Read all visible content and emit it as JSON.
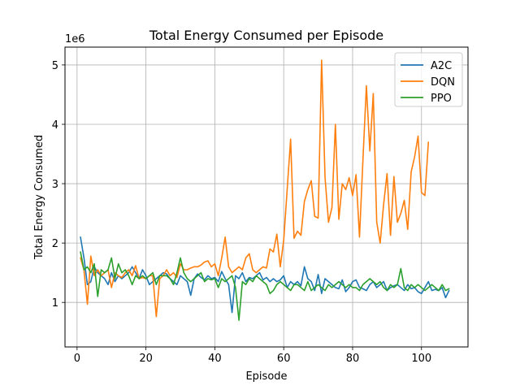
{
  "chart_data": {
    "type": "line",
    "title": "Total Energy Consumed per Episode",
    "xlabel": "Episode",
    "ylabel": "Total Energy Consumed",
    "y_offset_label": "1e6",
    "xlim": [
      -3.5,
      113.5
    ],
    "ylim": [
      250000,
      5300000
    ],
    "xticks": [
      0,
      20,
      40,
      60,
      80,
      100
    ],
    "yticks": [
      1000000,
      2000000,
      3000000,
      4000000,
      5000000
    ],
    "ytick_labels": [
      "1",
      "2",
      "3",
      "4",
      "5"
    ],
    "grid": true,
    "legend_position": "top-right",
    "series": [
      {
        "name": "A2C",
        "color": "#1f77b4",
        "x": [
          1,
          2,
          3,
          4,
          5,
          6,
          7,
          8,
          9,
          10,
          11,
          12,
          13,
          14,
          15,
          16,
          17,
          18,
          19,
          20,
          21,
          22,
          23,
          24,
          25,
          26,
          27,
          28,
          29,
          30,
          31,
          32,
          33,
          34,
          35,
          36,
          37,
          38,
          39,
          40,
          41,
          42,
          43,
          44,
          45,
          46,
          47,
          48,
          49,
          50,
          51,
          52,
          53,
          54,
          55,
          56,
          57,
          58,
          59,
          60,
          61,
          62,
          63,
          64,
          65,
          66,
          67,
          68,
          69,
          70,
          71,
          72,
          73,
          74,
          75,
          76,
          77,
          78,
          79,
          80,
          81,
          82,
          83,
          84,
          85,
          86,
          87,
          88,
          89,
          90,
          91,
          92,
          93,
          94,
          95,
          96,
          97,
          98,
          99,
          100,
          101,
          102,
          103,
          104,
          105,
          106,
          107,
          108
        ],
        "values": [
          2100000,
          1750000,
          1300000,
          1350000,
          1600000,
          1500000,
          1450000,
          1400000,
          1300000,
          1500000,
          1350000,
          1450000,
          1400000,
          1450000,
          1500000,
          1600000,
          1500000,
          1400000,
          1550000,
          1450000,
          1300000,
          1350000,
          1400000,
          1450000,
          1500000,
          1480000,
          1400000,
          1350000,
          1300000,
          1450000,
          1400000,
          1350000,
          1120000,
          1400000,
          1480000,
          1420000,
          1380000,
          1450000,
          1400000,
          1420000,
          1350000,
          1520000,
          1400000,
          1300000,
          830000,
          1450000,
          1400000,
          1500000,
          1350000,
          1420000,
          1400000,
          1450000,
          1500000,
          1380000,
          1420000,
          1350000,
          1400000,
          1350000,
          1380000,
          1450000,
          1250000,
          1350000,
          1300000,
          1350000,
          1280000,
          1600000,
          1400000,
          1350000,
          1200000,
          1470000,
          1150000,
          1400000,
          1350000,
          1300000,
          1250000,
          1230000,
          1380000,
          1180000,
          1250000,
          1350000,
          1380000,
          1250000,
          1230000,
          1200000,
          1300000,
          1350000,
          1250000,
          1300000,
          1350000,
          1200000,
          1250000,
          1280000,
          1300000,
          1250000,
          1200000,
          1300000,
          1230000,
          1250000,
          1180000,
          1150000,
          1250000,
          1350000,
          1200000,
          1220000,
          1200000,
          1250000,
          1080000,
          1200000
        ]
      },
      {
        "name": "DQN",
        "color": "#ff7f0e",
        "x": [
          1,
          2,
          3,
          4,
          5,
          6,
          7,
          8,
          9,
          10,
          11,
          12,
          13,
          14,
          15,
          16,
          17,
          18,
          19,
          20,
          21,
          22,
          23,
          24,
          25,
          26,
          27,
          28,
          29,
          30,
          31,
          32,
          33,
          34,
          35,
          36,
          37,
          38,
          39,
          40,
          41,
          42,
          43,
          44,
          45,
          46,
          47,
          48,
          49,
          50,
          51,
          52,
          53,
          54,
          55,
          56,
          57,
          58,
          59,
          60,
          61,
          62,
          63,
          64,
          65,
          66,
          67,
          68,
          69,
          70,
          71,
          72,
          73,
          74,
          75,
          76,
          77,
          78,
          79,
          80,
          81,
          82,
          83,
          84,
          85,
          86,
          87,
          88,
          89,
          90,
          91,
          92,
          93,
          94,
          95,
          96,
          97,
          98,
          99,
          100,
          101,
          102
        ],
        "values": [
          1750000,
          1550000,
          970000,
          1780000,
          1450000,
          1550000,
          1450000,
          1500000,
          1550000,
          1250000,
          1500000,
          1450000,
          1420000,
          1500000,
          1550000,
          1450000,
          1620000,
          1400000,
          1420000,
          1400000,
          1450000,
          1450000,
          760000,
          1400000,
          1450000,
          1550000,
          1450000,
          1500000,
          1420000,
          1650000,
          1550000,
          1550000,
          1580000,
          1600000,
          1600000,
          1630000,
          1680000,
          1700000,
          1600000,
          1650000,
          1450000,
          1750000,
          2100000,
          1600000,
          1500000,
          1550000,
          1600000,
          1550000,
          1750000,
          1820000,
          1550000,
          1500000,
          1550000,
          1600000,
          1580000,
          1900000,
          1850000,
          2150000,
          1600000,
          2050000,
          2900000,
          3750000,
          2080000,
          2200000,
          2130000,
          2700000,
          2900000,
          3050000,
          2450000,
          2420000,
          5080000,
          3100000,
          2350000,
          2600000,
          4000000,
          2400000,
          3000000,
          2900000,
          3100000,
          2800000,
          3150000,
          2100000,
          3400000,
          4650000,
          3550000,
          4520000,
          2350000,
          2000000,
          2650000,
          3170000,
          2130000,
          3120000,
          2350000,
          2500000,
          2720000,
          2230000,
          3200000,
          3450000,
          3800000,
          2850000,
          2800000,
          3700000
        ]
      },
      {
        "name": "PPO",
        "color": "#2ca02c",
        "x": [
          1,
          2,
          3,
          4,
          5,
          6,
          7,
          8,
          9,
          10,
          11,
          12,
          13,
          14,
          15,
          16,
          17,
          18,
          19,
          20,
          21,
          22,
          23,
          24,
          25,
          26,
          27,
          28,
          29,
          30,
          31,
          32,
          33,
          34,
          35,
          36,
          37,
          38,
          39,
          40,
          41,
          42,
          43,
          44,
          45,
          46,
          47,
          48,
          49,
          50,
          51,
          52,
          53,
          54,
          55,
          56,
          57,
          58,
          59,
          60,
          61,
          62,
          63,
          64,
          65,
          66,
          67,
          68,
          69,
          70,
          71,
          72,
          73,
          74,
          75,
          76,
          77,
          78,
          79,
          80,
          81,
          82,
          83,
          84,
          85,
          86,
          87,
          88,
          89,
          90,
          91,
          92,
          93,
          94,
          95,
          96,
          97,
          98,
          99,
          100,
          101,
          102,
          103,
          104,
          105,
          106,
          107,
          108
        ],
        "values": [
          1850000,
          1550000,
          1600000,
          1500000,
          1650000,
          1100000,
          1550000,
          1500000,
          1550000,
          1750000,
          1400000,
          1650000,
          1500000,
          1550000,
          1450000,
          1300000,
          1450000,
          1400000,
          1450000,
          1400000,
          1450000,
          1500000,
          1300000,
          1450000,
          1450000,
          1450000,
          1400000,
          1300000,
          1500000,
          1750000,
          1500000,
          1400000,
          1350000,
          1400000,
          1450000,
          1500000,
          1350000,
          1400000,
          1380000,
          1400000,
          1250000,
          1400000,
          1350000,
          1400000,
          1450000,
          1250000,
          700000,
          1350000,
          1300000,
          1400000,
          1350000,
          1450000,
          1400000,
          1350000,
          1300000,
          1150000,
          1200000,
          1300000,
          1350000,
          1300000,
          1250000,
          1200000,
          1300000,
          1300000,
          1250000,
          1200000,
          1350000,
          1200000,
          1250000,
          1300000,
          1250000,
          1200000,
          1300000,
          1250000,
          1300000,
          1350000,
          1300000,
          1250000,
          1300000,
          1250000,
          1250000,
          1200000,
          1300000,
          1350000,
          1400000,
          1350000,
          1300000,
          1350000,
          1250000,
          1200000,
          1300000,
          1250000,
          1300000,
          1570000,
          1250000,
          1200000,
          1300000,
          1250000,
          1300000,
          1250000,
          1200000,
          1250000,
          1300000,
          1250000,
          1200000,
          1300000,
          1200000,
          1230000
        ]
      }
    ]
  }
}
